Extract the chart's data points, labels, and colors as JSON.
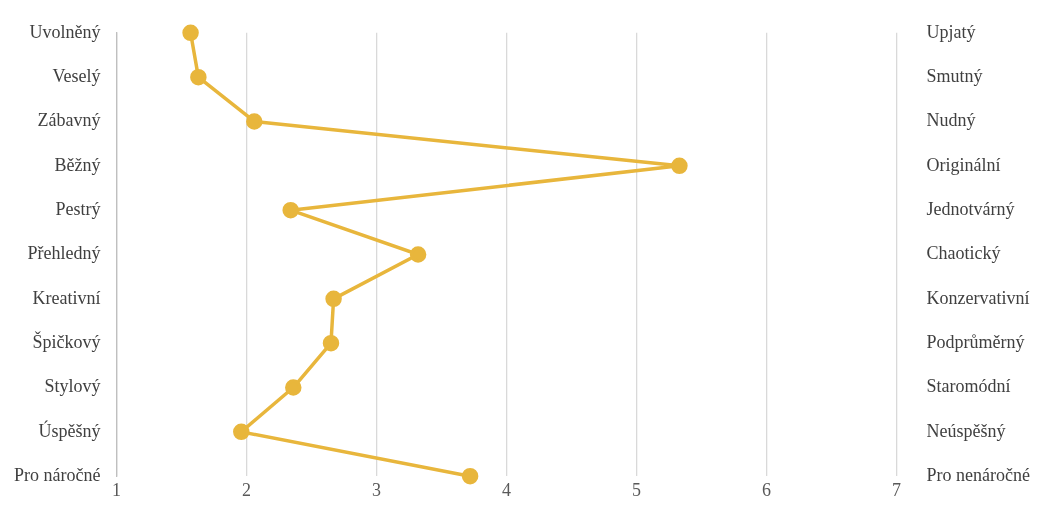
{
  "chart_data": {
    "type": "line",
    "orientation": "horizontal",
    "categories": [
      "Uvolněný",
      "Veselý",
      "Zábavný",
      "Běžný",
      "Pestrý",
      "Přehledný",
      "Kreativní",
      "Špičkový",
      "Stylový",
      "Úspěšný",
      "Pro náročné"
    ],
    "y2_categories": [
      "Upjatý",
      "Smutný",
      "Nudný",
      "Originální",
      "Jednotvárný",
      "Chaotický",
      "Konzervativní",
      "Podprůměrný",
      "Staromódní",
      "Neúspěšný",
      "Pro nenáročné"
    ],
    "series": [
      {
        "color": "#e8b63c",
        "values": [
          1.57,
          1.63,
          2.06,
          5.33,
          2.34,
          3.32,
          2.67,
          2.65,
          2.36,
          1.96,
          3.72
        ]
      }
    ],
    "xlim": [
      1,
      7
    ],
    "xticks": [
      1,
      2,
      3,
      4,
      5,
      6,
      7
    ],
    "grid": "x",
    "marker": "circle",
    "legend": false
  }
}
